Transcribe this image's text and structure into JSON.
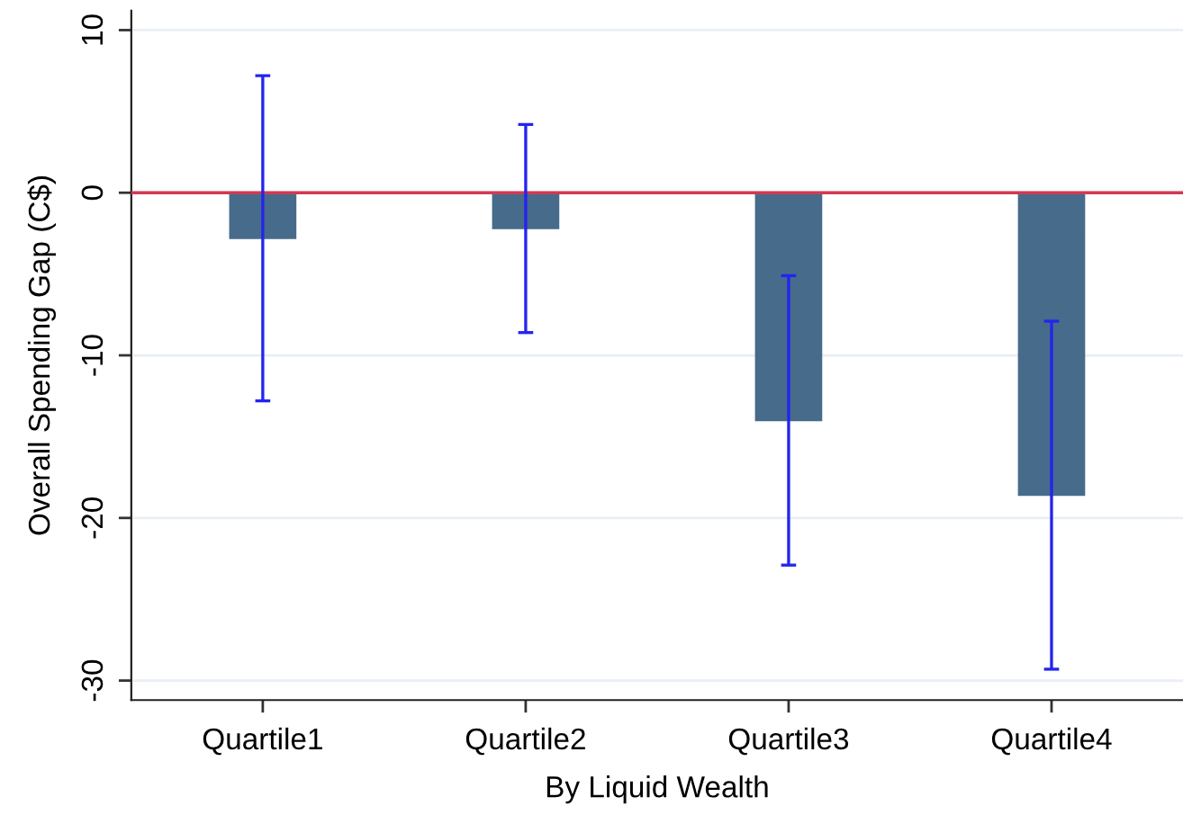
{
  "chart_data": {
    "type": "bar",
    "xlabel": "By Liquid Wealth",
    "ylabel": "Overall Spending Gap (C$)",
    "categories": [
      "Quartile1",
      "Quartile2",
      "Quartile3",
      "Quartile4"
    ],
    "series": [
      {
        "color": "#476b8b",
        "values": [
          -2.8,
          -2.2,
          -14.0,
          -18.6
        ],
        "errors": [
          10.0,
          6.4,
          8.9,
          10.7
        ]
      }
    ],
    "ylim": [
      -31.2,
      11.2
    ],
    "yticks": [
      -30,
      -20,
      -10,
      0,
      10
    ],
    "ref_lines": [
      {
        "axis": "y",
        "value": 0,
        "color": "#d03a55"
      }
    ],
    "grid": "y"
  }
}
